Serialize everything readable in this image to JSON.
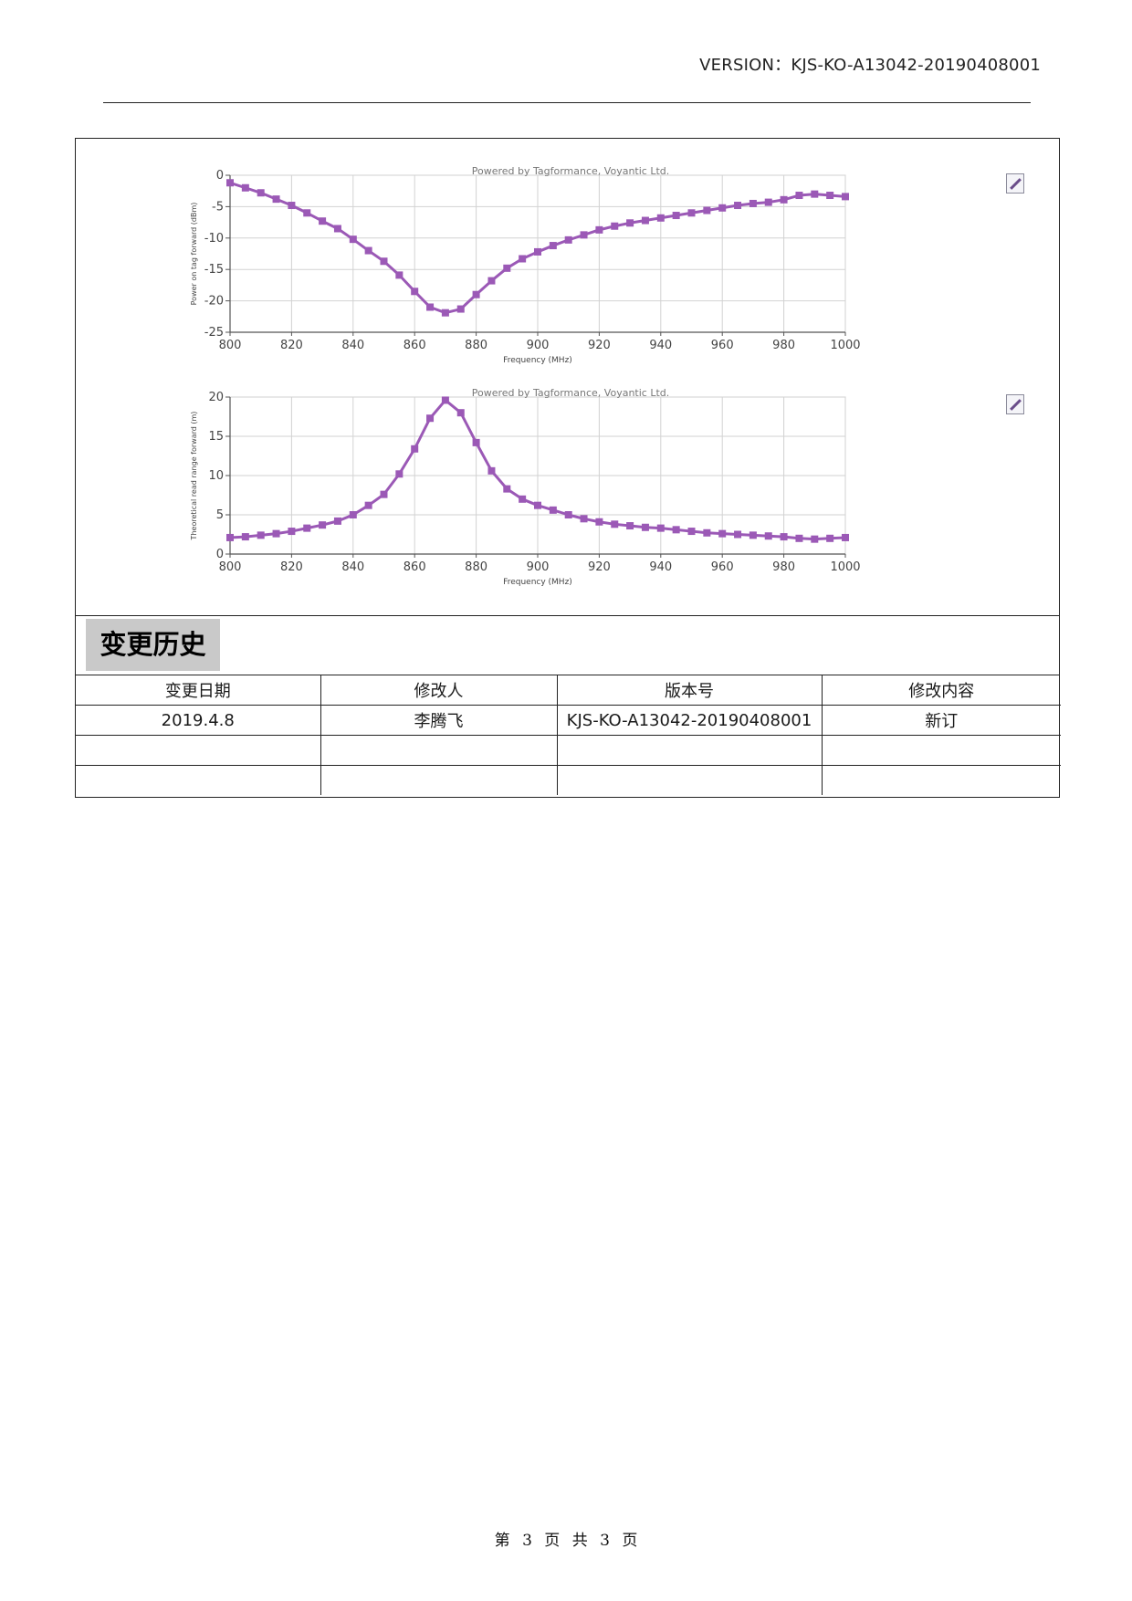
{
  "header": {
    "version_text": "VERSION：KJS-KO-A13042-20190408001"
  },
  "chart_data": [
    {
      "type": "line",
      "watermark": "Powered by Tagformance, Voyantic Ltd.",
      "xlabel": "Frequency (MHz)",
      "ylabel": "Power on tag forward (dBm)",
      "xlim": [
        800,
        1000
      ],
      "ylim": [
        -25,
        0
      ],
      "x_ticks": [
        800,
        820,
        840,
        860,
        880,
        900,
        920,
        940,
        960,
        980,
        1000
      ],
      "y_ticks": [
        0,
        -5,
        -10,
        -15,
        -20,
        -25
      ],
      "tick_labels_x": [
        "800",
        "820",
        "840",
        "860",
        "880",
        "900",
        "920",
        "940",
        "960",
        "980",
        "1000"
      ],
      "tick_labels_y": [
        "0",
        "-5",
        "-10",
        "-15",
        "-20",
        "-25"
      ],
      "grid": true,
      "color": "#9b59b6",
      "x": [
        800,
        805,
        810,
        815,
        820,
        825,
        830,
        835,
        840,
        845,
        850,
        855,
        860,
        865,
        870,
        875,
        880,
        885,
        890,
        895,
        900,
        905,
        910,
        915,
        920,
        925,
        930,
        935,
        940,
        945,
        950,
        955,
        960,
        965,
        970,
        975,
        980,
        985,
        990,
        995,
        1000
      ],
      "y": [
        -1.2,
        -2.0,
        -2.8,
        -3.8,
        -4.8,
        -6.0,
        -7.3,
        -8.5,
        -10.2,
        -12.0,
        -13.7,
        -15.9,
        -18.5,
        -21.0,
        -21.9,
        -21.3,
        -19.0,
        -16.8,
        -14.8,
        -13.3,
        -12.2,
        -11.2,
        -10.3,
        -9.5,
        -8.7,
        -8.1,
        -7.6,
        -7.2,
        -6.8,
        -6.4,
        -6.0,
        -5.6,
        -5.2,
        -4.8,
        -4.5,
        -4.3,
        -3.9,
        -3.2,
        -3.0,
        -3.2,
        -3.4
      ]
    },
    {
      "type": "line",
      "watermark": "Powered by Tagformance, Voyantic Ltd.",
      "xlabel": "Frequency (MHz)",
      "ylabel": "Theoretical read range forward (m)",
      "xlim": [
        800,
        1000
      ],
      "ylim": [
        0,
        20
      ],
      "x_ticks": [
        800,
        820,
        840,
        860,
        880,
        900,
        920,
        940,
        960,
        980,
        1000
      ],
      "y_ticks": [
        20,
        15,
        10,
        5,
        0
      ],
      "tick_labels_x": [
        "800",
        "820",
        "840",
        "860",
        "880",
        "900",
        "920",
        "940",
        "960",
        "980",
        "1000"
      ],
      "tick_labels_y": [
        "20",
        "15",
        "10",
        "5",
        "0"
      ],
      "grid": true,
      "color": "#9b59b6",
      "x": [
        800,
        805,
        810,
        815,
        820,
        825,
        830,
        835,
        840,
        845,
        850,
        855,
        860,
        865,
        870,
        875,
        880,
        885,
        890,
        895,
        900,
        905,
        910,
        915,
        920,
        925,
        930,
        935,
        940,
        945,
        950,
        955,
        960,
        965,
        970,
        975,
        980,
        985,
        990,
        995,
        1000
      ],
      "y": [
        2.1,
        2.2,
        2.4,
        2.6,
        2.9,
        3.3,
        3.7,
        4.2,
        5.0,
        6.2,
        7.6,
        10.2,
        13.4,
        17.3,
        19.6,
        18.0,
        14.2,
        10.6,
        8.3,
        7.0,
        6.2,
        5.6,
        5.0,
        4.5,
        4.1,
        3.8,
        3.6,
        3.4,
        3.3,
        3.1,
        2.9,
        2.7,
        2.6,
        2.5,
        2.4,
        2.3,
        2.2,
        2.0,
        1.9,
        2.0,
        2.1
      ]
    }
  ],
  "icons": [
    "edit-icon",
    "edit-icon"
  ],
  "change_history": {
    "title": "变更历史",
    "headers": [
      "变更日期",
      "修改人",
      "版本号",
      "修改内容"
    ],
    "rows": [
      [
        "2019.4.8",
        "李腾飞",
        "KJS-KO-A13042-20190408001",
        "新订"
      ],
      [
        "",
        "",
        "",
        ""
      ],
      [
        "",
        "",
        "",
        ""
      ]
    ]
  },
  "footer": {
    "page_text": "第 3 页 共 3 页"
  }
}
